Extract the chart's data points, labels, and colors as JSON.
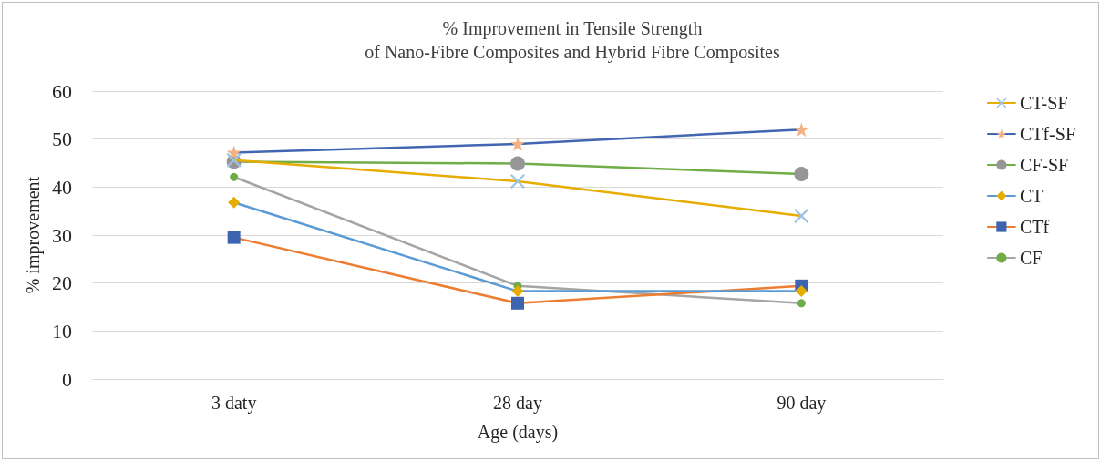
{
  "chart_data": {
    "type": "line",
    "title": "% Improvement in Tensile Strength\nof Nano-Fibre Composites and Hybrid Fibre Composites",
    "xlabel": "Age (days)",
    "ylabel": "% improvement",
    "categories": [
      "3 daty",
      "28 day",
      "90 day"
    ],
    "ylim": [
      0,
      60
    ],
    "yticks": [
      0,
      10,
      20,
      30,
      40,
      50,
      60
    ],
    "grid": "y",
    "legend": "right",
    "line_style": "solid",
    "series": [
      {
        "name": "CT-SF",
        "color": "#e6ac00",
        "colors": [
          "#9dc3e6",
          "#9dc3e6",
          "#9dc3e6"
        ],
        "marker": "cross",
        "values": [
          45.6,
          41.2,
          34.0
        ]
      },
      {
        "name": "CTf-SF",
        "color": "#4267b2",
        "colors": [
          "#f4b183",
          "#f4b183",
          "#f4b183"
        ],
        "marker": "star",
        "values": [
          47.2,
          49.0,
          52.0
        ]
      },
      {
        "name": "CF-SF",
        "color": "#70ad47",
        "colors": [
          "#969696",
          "#969696",
          "#969696"
        ],
        "marker": "circle",
        "values": [
          45.3,
          44.9,
          42.7
        ]
      },
      {
        "name": "CT",
        "color": "#5b9bd5",
        "colors": [
          "#e6ac00",
          "#e6ac00",
          "#e6ac00"
        ],
        "marker": "diamond",
        "values": [
          36.8,
          18.3,
          18.3
        ]
      },
      {
        "name": "CTf",
        "color": "#ed7d31",
        "colors": [
          "#3c64b1",
          "#3c64b1",
          "#3c64b1"
        ],
        "marker": "square",
        "values": [
          29.5,
          15.8,
          19.4
        ]
      },
      {
        "name": "CF",
        "color": "#a5a5a5",
        "colors": [
          "#70ad47",
          "#70ad47",
          "#70ad47"
        ],
        "marker": "circle",
        "values": [
          42.1,
          19.4,
          15.8
        ]
      }
    ]
  }
}
